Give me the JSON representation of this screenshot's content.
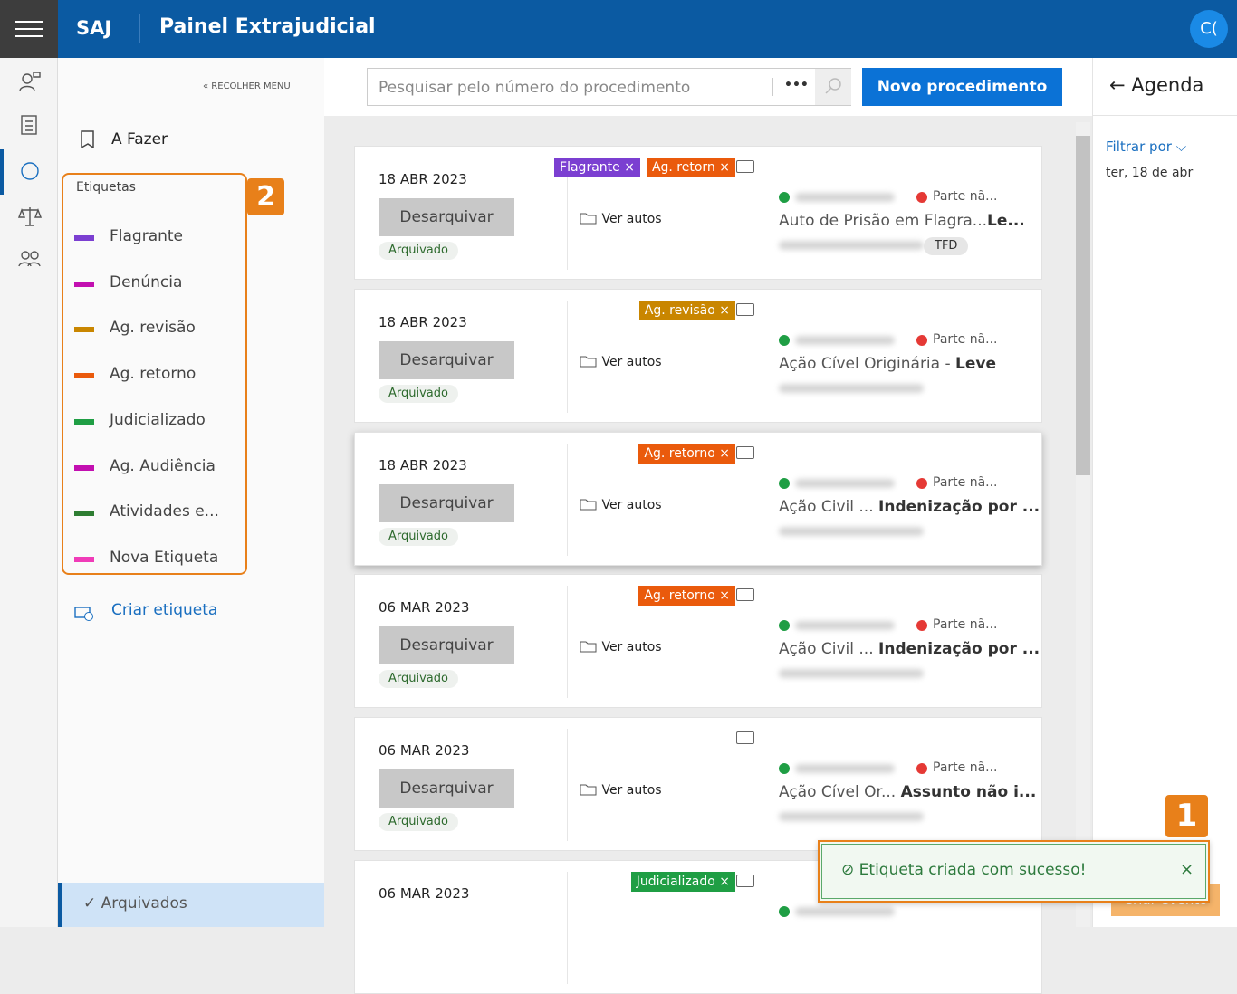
{
  "header": {
    "app": "SAJ",
    "title": "Painel Extrajudicial",
    "avatar": "C("
  },
  "sidebar": {
    "collapse": "RECOLHER MENU",
    "todo": "A Fazer",
    "labels_title": "Etiquetas",
    "labels": [
      {
        "name": "Flagrante",
        "color": "#7b3fd1"
      },
      {
        "name": "Denúncia",
        "color": "#c20fb0"
      },
      {
        "name": "Ag. revisão",
        "color": "#c98600"
      },
      {
        "name": "Ag. retorno",
        "color": "#ea5a0c"
      },
      {
        "name": "Judicializado",
        "color": "#1f9e44"
      },
      {
        "name": "Ag. Audiência",
        "color": "#c20fb0"
      },
      {
        "name": "Atividades e...",
        "color": "#2e7d32"
      },
      {
        "name": "Nova Etiqueta",
        "color": "#f03cb8"
      }
    ],
    "create": "Criar etiqueta",
    "archived": "Arquivados"
  },
  "search": {
    "placeholder": "Pesquisar pelo número do procedimento",
    "more": "•••",
    "new": "Novo procedimento"
  },
  "cards": [
    {
      "date": "18 ABR 2023",
      "action": "Desarquivar",
      "status": "Arquivado",
      "tags": [
        {
          "name": "Flagrante",
          "color": "#7b3fd1"
        },
        {
          "name": "Ag. retorn",
          "color": "#ea5a0c"
        }
      ],
      "view": "Ver autos",
      "party": "Parte nã...",
      "subject": "Auto de Prisão em Flagra...",
      "subject_bold": "Le...",
      "badge": "TFD"
    },
    {
      "date": "18 ABR 2023",
      "action": "Desarquivar",
      "status": "Arquivado",
      "tags": [
        {
          "name": "Ag. revisão",
          "color": "#c98600"
        }
      ],
      "view": "Ver autos",
      "party": "Parte nã...",
      "subject": "Ação Cível Originária - ",
      "subject_bold": "Leve"
    },
    {
      "date": "18 ABR 2023",
      "action": "Desarquivar",
      "status": "Arquivado",
      "tags": [
        {
          "name": "Ag. retorno",
          "color": "#ea5a0c"
        }
      ],
      "view": "Ver autos",
      "party": "Parte nã...",
      "subject": "Ação Civil ... ",
      "subject_bold": "Indenização por ..."
    },
    {
      "date": "06 MAR 2023",
      "action": "Desarquivar",
      "status": "Arquivado",
      "tags": [
        {
          "name": "Ag. retorno",
          "color": "#ea5a0c"
        }
      ],
      "view": "Ver autos",
      "party": "Parte nã...",
      "subject": "Ação Civil ... ",
      "subject_bold": "Indenização por ..."
    },
    {
      "date": "06 MAR 2023",
      "action": "Desarquivar",
      "status": "Arquivado",
      "tags": [],
      "view": "Ver autos",
      "party": "Parte nã...",
      "subject": "Ação Cível Or... ",
      "subject_bold": "Assunto não i..."
    },
    {
      "date": "06 MAR 2023",
      "tags": [
        {
          "name": "Judicializado",
          "color": "#1f9e44"
        }
      ]
    }
  ],
  "agenda": {
    "title": "Agenda",
    "filter": "Filtrar por",
    "date": "ter, 18 de abr",
    "event": "Criar evento"
  },
  "toast": {
    "message": "Etiqueta criada com sucesso!"
  },
  "callouts": [
    "1",
    "2"
  ]
}
